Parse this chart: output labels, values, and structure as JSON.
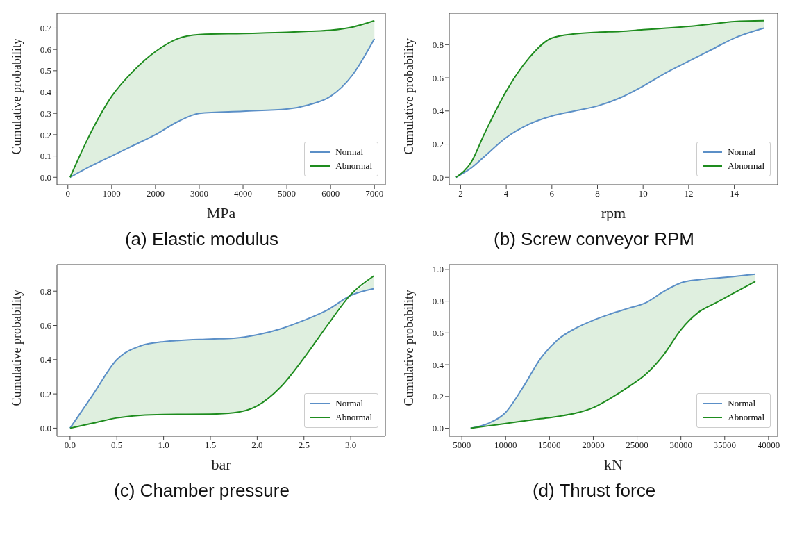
{
  "chart_data": [
    {
      "type": "line",
      "title": "(a) Elastic modulus",
      "xlabel": "MPa",
      "ylabel": "Cumulative probability",
      "legend": "bottom right",
      "x": [
        50,
        500,
        1000,
        1500,
        2000,
        2500,
        3000,
        4000,
        5000,
        5500,
        6000,
        6500,
        7000
      ],
      "series": [
        {
          "name": "Normal",
          "color": "#5b8fc7",
          "values": [
            0,
            0.05,
            0.1,
            0.15,
            0.2,
            0.26,
            0.3,
            0.31,
            0.32,
            0.34,
            0.38,
            0.48,
            0.65
          ]
        },
        {
          "name": "Abnormal",
          "color": "#1e8c1e",
          "values": [
            0,
            0.2,
            0.38,
            0.5,
            0.59,
            0.65,
            0.67,
            0.675,
            0.68,
            0.685,
            0.69,
            0.705,
            0.735
          ],
          "lower": [
            0,
            0.05,
            0.1,
            0.15,
            0.2,
            0.26,
            0.3,
            0.31,
            0.32,
            0.34,
            0.38,
            0.48,
            0.65
          ],
          "upper": [
            0,
            0.2,
            0.38,
            0.5,
            0.59,
            0.65,
            0.67,
            0.675,
            0.68,
            0.685,
            0.69,
            0.705,
            0.735
          ]
        }
      ],
      "xlim": [
        -250,
        7250
      ],
      "ylim": [
        -0.035,
        0.77
      ],
      "xticks": [
        0,
        1000,
        2000,
        3000,
        4000,
        5000,
        6000,
        7000
      ],
      "yticks": [
        {
          "value": 0,
          "label": "0.0"
        },
        {
          "value": 0.1,
          "label": "0.1"
        },
        {
          "value": 0.2,
          "label": "0.2"
        },
        {
          "value": 0.3,
          "label": "0.3"
        },
        {
          "value": 0.4,
          "label": "0.4"
        },
        {
          "value": 0.5,
          "label": "0.5"
        },
        {
          "value": 0.6,
          "label": "0.6"
        },
        {
          "value": 0.7,
          "label": "0.7"
        }
      ]
    },
    {
      "type": "line",
      "title": "(b) Screw conveyor RPM",
      "xlabel": "rpm",
      "ylabel": "Cumulative probability",
      "legend": "bottom right",
      "x": [
        1.8,
        2.5,
        3,
        4,
        5,
        6,
        7,
        8,
        9,
        10,
        11,
        12,
        13,
        14,
        15.3
      ],
      "series": [
        {
          "name": "Normal",
          "color": "#5b8fc7",
          "values": [
            0,
            0.06,
            0.12,
            0.24,
            0.32,
            0.37,
            0.4,
            0.43,
            0.48,
            0.55,
            0.63,
            0.7,
            0.77,
            0.84,
            0.9
          ]
        },
        {
          "name": "Abnormal",
          "color": "#1e8c1e",
          "values": [
            0,
            0.1,
            0.25,
            0.52,
            0.72,
            0.84,
            0.865,
            0.875,
            0.88,
            0.89,
            0.9,
            0.91,
            0.925,
            0.94,
            0.945
          ],
          "lower": [
            0,
            0.06,
            0.12,
            0.24,
            0.32,
            0.37,
            0.4,
            0.43,
            0.48,
            0.55,
            0.63,
            0.7,
            0.77,
            0.84,
            0.9
          ],
          "upper": [
            0,
            0.1,
            0.25,
            0.52,
            0.72,
            0.84,
            0.865,
            0.875,
            0.88,
            0.89,
            0.9,
            0.91,
            0.925,
            0.94,
            0.945
          ]
        }
      ],
      "xlim": [
        1.5,
        15.9
      ],
      "ylim": [
        -0.045,
        0.99
      ],
      "xticks": [
        2,
        4,
        6,
        8,
        10,
        12,
        14
      ],
      "yticks": [
        {
          "value": 0,
          "label": "0.0"
        },
        {
          "value": 0.2,
          "label": "0.2"
        },
        {
          "value": 0.4,
          "label": "0.4"
        },
        {
          "value": 0.6,
          "label": "0.6"
        },
        {
          "value": 0.8,
          "label": "0.8"
        }
      ]
    },
    {
      "type": "line",
      "title": "(c) Chamber pressure",
      "xlabel": "bar",
      "ylabel": "Cumulative probability",
      "legend": "bottom right",
      "x": [
        0,
        0.25,
        0.5,
        0.75,
        1,
        1.5,
        1.75,
        2,
        2.25,
        2.5,
        2.75,
        3,
        3.25
      ],
      "series": [
        {
          "name": "Normal",
          "color": "#5b8fc7",
          "values": [
            0,
            0.2,
            0.4,
            0.48,
            0.505,
            0.52,
            0.525,
            0.545,
            0.58,
            0.63,
            0.69,
            0.775,
            0.815
          ]
        },
        {
          "name": "Abnormal",
          "color": "#1e8c1e",
          "values": [
            0,
            0.03,
            0.06,
            0.075,
            0.08,
            0.082,
            0.09,
            0.13,
            0.24,
            0.41,
            0.6,
            0.78,
            0.89
          ],
          "lower": [
            0,
            0.03,
            0.06,
            0.075,
            0.08,
            0.082,
            0.09,
            0.13,
            0.24,
            0.41,
            0.6,
            0.78,
            0.815
          ],
          "upper": [
            0,
            0.2,
            0.4,
            0.48,
            0.505,
            0.52,
            0.525,
            0.545,
            0.58,
            0.63,
            0.69,
            0.775,
            0.89
          ]
        }
      ],
      "xlim": [
        -0.14,
        3.37
      ],
      "ylim": [
        -0.047,
        0.955
      ],
      "xticks": [
        {
          "value": 0,
          "label": "0.0"
        },
        {
          "value": 0.5,
          "label": "0.5"
        },
        {
          "value": 1,
          "label": "1.0"
        },
        {
          "value": 1.5,
          "label": "1.5"
        },
        {
          "value": 2,
          "label": "2.0"
        },
        {
          "value": 2.5,
          "label": "2.5"
        },
        {
          "value": 3,
          "label": "3.0"
        }
      ],
      "yticks": [
        {
          "value": 0,
          "label": "0.0"
        },
        {
          "value": 0.2,
          "label": "0.2"
        },
        {
          "value": 0.4,
          "label": "0.4"
        },
        {
          "value": 0.6,
          "label": "0.6"
        },
        {
          "value": 0.8,
          "label": "0.8"
        }
      ]
    },
    {
      "type": "line",
      "title": "(d) Thrust force",
      "xlabel": "kN",
      "ylabel": "Cumulative probability",
      "legend": "bottom right",
      "x": [
        6000,
        8000,
        10000,
        12000,
        14000,
        16000,
        18000,
        20000,
        22000,
        24000,
        26000,
        28000,
        30000,
        32000,
        34000,
        36000,
        38500
      ],
      "series": [
        {
          "name": "Normal",
          "color": "#5b8fc7",
          "values": [
            0,
            0.03,
            0.1,
            0.26,
            0.44,
            0.56,
            0.63,
            0.68,
            0.72,
            0.755,
            0.79,
            0.86,
            0.915,
            0.935,
            0.945,
            0.955,
            0.97
          ]
        },
        {
          "name": "Abnormal",
          "color": "#1e8c1e",
          "values": [
            0,
            0.015,
            0.03,
            0.045,
            0.06,
            0.075,
            0.095,
            0.13,
            0.19,
            0.26,
            0.34,
            0.46,
            0.62,
            0.73,
            0.79,
            0.85,
            0.925
          ],
          "lower": [
            0,
            0.015,
            0.03,
            0.045,
            0.06,
            0.075,
            0.095,
            0.13,
            0.19,
            0.26,
            0.34,
            0.46,
            0.62,
            0.73,
            0.79,
            0.85,
            0.925
          ],
          "upper": [
            0,
            0.03,
            0.1,
            0.26,
            0.44,
            0.56,
            0.63,
            0.68,
            0.72,
            0.755,
            0.79,
            0.86,
            0.915,
            0.935,
            0.945,
            0.955,
            0.97
          ]
        }
      ],
      "xlim": [
        3560,
        41040
      ],
      "ylim": [
        -0.05,
        1.03
      ],
      "xticks": [
        5000,
        10000,
        15000,
        20000,
        25000,
        30000,
        35000,
        40000
      ],
      "yticks": [
        {
          "value": 0,
          "label": "0.0"
        },
        {
          "value": 0.2,
          "label": "0.2"
        },
        {
          "value": 0.4,
          "label": "0.4"
        },
        {
          "value": 0.6,
          "label": "0.6"
        },
        {
          "value": 0.8,
          "label": "0.8"
        },
        {
          "value": 1,
          "label": "1.0"
        }
      ]
    }
  ]
}
